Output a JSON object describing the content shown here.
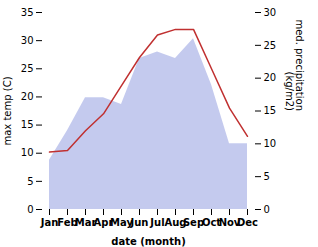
{
  "chart_data": {
    "type": "line",
    "xlabel": "date (month)",
    "ylabel": "max temp (C)",
    "y2label": "med. precipitation\n(kg/m2)",
    "categories": [
      "Jan",
      "Feb",
      "Mar",
      "Apr",
      "May",
      "Jun",
      "Jul",
      "Aug",
      "Sep",
      "Oct",
      "Nov",
      "Dec"
    ],
    "series": [
      {
        "type": "area",
        "axis": "y2",
        "color": "#b0b8e8",
        "values": [
          7.5,
          12.0,
          17.0,
          17.0,
          16.0,
          23.0,
          24.0,
          23.0,
          26.0,
          19.0,
          10.0,
          10.0
        ]
      },
      {
        "type": "line",
        "color": "#c03030",
        "values": [
          10.2,
          10.5,
          14.0,
          17.0,
          22.0,
          27.0,
          31.0,
          32.0,
          32.0,
          25.0,
          18.0,
          13.0
        ]
      }
    ],
    "ylim": [
      0,
      35
    ],
    "yticks": [
      0,
      5,
      10,
      15,
      20,
      25,
      30,
      35
    ],
    "y2lim": [
      0,
      30
    ],
    "y2ticks": [
      0,
      5,
      10,
      15,
      20,
      25,
      30
    ],
    "grid": false
  }
}
